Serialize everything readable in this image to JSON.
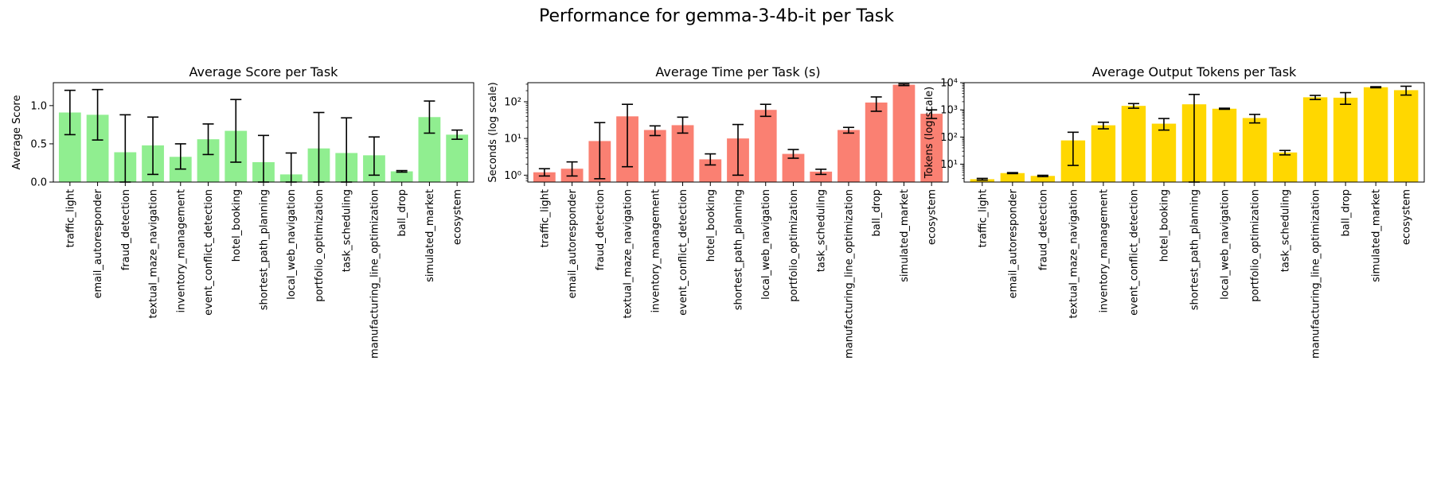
{
  "figure": {
    "title": "Performance for gemma-3-4b-it per Task"
  },
  "chart_data": [
    {
      "type": "bar",
      "title": "Average Score per Task",
      "xlabel": "",
      "ylabel": "Average Score",
      "yscale": "linear",
      "ylim": [
        0,
        1.3
      ],
      "yticks": [
        0.0,
        0.5,
        1.0
      ],
      "ytick_labels": [
        "0.0",
        "0.5",
        "1.0"
      ],
      "color": "#90ee90",
      "categories": [
        "traffic_light",
        "email_autoresponder",
        "fraud_detection",
        "textual_maze_navigation",
        "inventory_management",
        "event_conflict_detection",
        "hotel_booking",
        "shortest_path_planning",
        "local_web_navigation",
        "portfolio_optimization",
        "task_scheduling",
        "manufacturing_line_optimization",
        "ball_drop",
        "simulated_market",
        "ecosystem"
      ],
      "values": [
        0.91,
        0.88,
        0.39,
        0.48,
        0.33,
        0.56,
        0.67,
        0.26,
        0.1,
        0.44,
        0.38,
        0.35,
        0.14,
        0.85,
        0.62
      ],
      "err_low": [
        0.62,
        0.55,
        0.0,
        0.1,
        0.17,
        0.36,
        0.26,
        0.0,
        0.0,
        0.0,
        0.0,
        0.09,
        0.13,
        0.64,
        0.56
      ],
      "err_high": [
        1.2,
        1.21,
        0.88,
        0.85,
        0.5,
        0.76,
        1.08,
        0.61,
        0.38,
        0.91,
        0.84,
        0.59,
        0.15,
        1.06,
        0.68
      ]
    },
    {
      "type": "bar",
      "title": "Average Time per Task (s)",
      "xlabel": "",
      "ylabel": "Seconds (log scale)",
      "yscale": "log",
      "ylim": [
        0.65,
        330
      ],
      "yticks": [
        1,
        10,
        100
      ],
      "ytick_labels": [
        "10⁰",
        "10¹",
        "10²"
      ],
      "color": "#fa8072",
      "categories": [
        "traffic_light",
        "email_autoresponder",
        "fraud_detection",
        "textual_maze_navigation",
        "inventory_management",
        "event_conflict_detection",
        "hotel_booking",
        "shortest_path_planning",
        "local_web_navigation",
        "portfolio_optimization",
        "task_scheduling",
        "manufacturing_line_optimization",
        "ball_drop",
        "simulated_market",
        "ecosystem"
      ],
      "values": [
        1.2,
        1.5,
        8.5,
        40,
        17,
        23,
        2.7,
        10,
        60,
        3.8,
        1.25,
        17,
        95,
        290,
        47
      ],
      "err_low": [
        0.95,
        0.95,
        0.8,
        1.7,
        12,
        14,
        1.9,
        1.0,
        40,
        2.9,
        1.05,
        14,
        55,
        275,
        35
      ],
      "err_high": [
        1.5,
        2.3,
        27,
        85,
        22,
        38,
        3.8,
        24,
        85,
        5.0,
        1.45,
        20,
        135,
        305,
        60
      ]
    },
    {
      "type": "bar",
      "title": "Average Output Tokens per Task",
      "xlabel": "",
      "ylabel": "Tokens (log scale)",
      "yscale": "log",
      "ylim": [
        2.2,
        10000
      ],
      "yticks": [
        10,
        100,
        1000,
        10000
      ],
      "ytick_labels": [
        "10¹",
        "10²",
        "10³",
        "10⁴"
      ],
      "color": "#ffd700",
      "categories": [
        "traffic_light",
        "email_autoresponder",
        "fraud_detection",
        "textual_maze_navigation",
        "inventory_management",
        "event_conflict_detection",
        "hotel_booking",
        "shortest_path_planning",
        "local_web_navigation",
        "portfolio_optimization",
        "task_scheduling",
        "manufacturing_line_optimization",
        "ball_drop",
        "simulated_market",
        "ecosystem"
      ],
      "values": [
        2.8,
        4.7,
        3.7,
        75,
        270,
        1400,
        310,
        1600,
        1100,
        500,
        27,
        2900,
        2800,
        6800,
        5300
      ],
      "err_low": [
        2.6,
        4.5,
        3.5,
        9,
        200,
        1150,
        180,
        2.2,
        1050,
        330,
        22,
        2400,
        1600,
        6500,
        3500
      ],
      "err_high": [
        3.0,
        4.9,
        3.9,
        150,
        350,
        1700,
        480,
        3700,
        1150,
        680,
        32,
        3400,
        4300,
        7100,
        7400
      ]
    }
  ]
}
